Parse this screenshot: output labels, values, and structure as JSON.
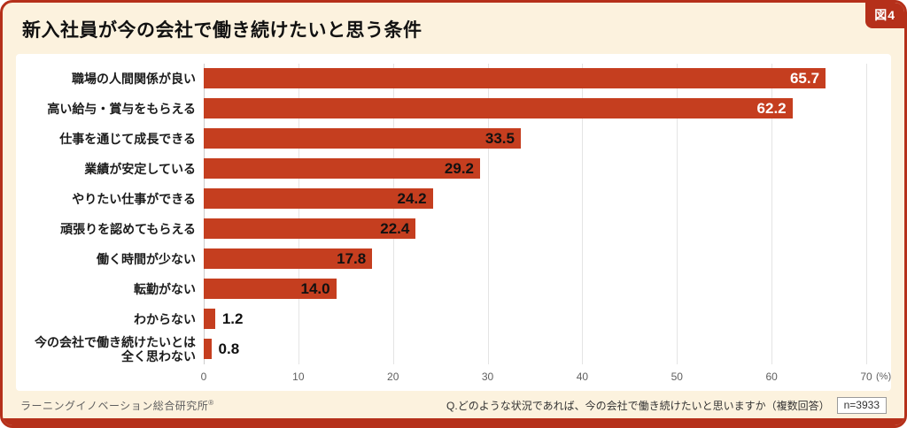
{
  "figure_badge": "図4",
  "header": {
    "title": "新入社員が今の会社で働き続けたいと思う条件"
  },
  "colors": {
    "bar": "#c53e1f",
    "frame": "#b5301a",
    "background": "#fcf2de",
    "value_inside_light": "#ffffff",
    "text_dark": "#111111"
  },
  "chart_data": {
    "type": "bar",
    "orientation": "horizontal",
    "title": "新入社員が今の会社で働き続けたいと思う条件",
    "categories": [
      "職場の人間関係が良い",
      "高い給与・賞与をもらえる",
      "仕事を通じて成長できる",
      "業績が安定している",
      "やりたい仕事ができる",
      "頑張りを認めてもらえる",
      "働く時間が少ない",
      "転勤がない",
      "わからない",
      "今の会社で働き続けたいとは\n全く思わない"
    ],
    "values": [
      65.7,
      62.2,
      33.5,
      29.2,
      24.2,
      22.4,
      17.8,
      14.0,
      1.2,
      0.8
    ],
    "value_labels": [
      "65.7",
      "62.2",
      "33.5",
      "29.2",
      "24.2",
      "22.4",
      "17.8",
      "14.0",
      "1.2",
      "0.8"
    ],
    "label_styles": [
      "inside-white",
      "inside-white",
      "inside-dark",
      "inside-dark",
      "inside-dark",
      "inside-dark",
      "inside-dark",
      "inside-dark",
      "outside",
      "outside"
    ],
    "xlim": [
      0,
      70
    ],
    "x_ticks": [
      0,
      10,
      20,
      30,
      40,
      50,
      60,
      70
    ],
    "x_unit": "(%)",
    "grid": true,
    "legend": false
  },
  "footer": {
    "source": "ラーニングイノベーション総合研究所",
    "source_mark": "®",
    "question": "Q.どのような状況であれば、今の会社で働き続けたいと思いますか（複数回答）",
    "sample": "n=3933"
  }
}
